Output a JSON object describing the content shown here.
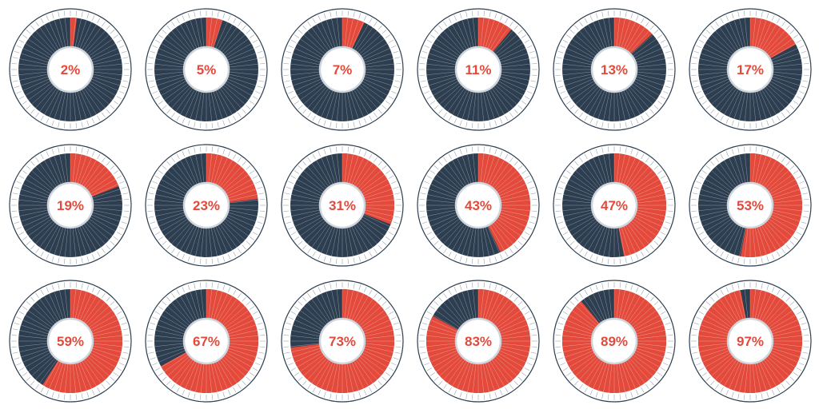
{
  "chart_data": {
    "type": "pie",
    "style": "donut-gauge-grid",
    "values": [
      2,
      5,
      7,
      11,
      13,
      17,
      19,
      23,
      31,
      43,
      47,
      53,
      59,
      67,
      73,
      83,
      89,
      97
    ],
    "labels": [
      "2%",
      "5%",
      "7%",
      "11%",
      "13%",
      "17%",
      "19%",
      "23%",
      "31%",
      "43%",
      "47%",
      "53%",
      "59%",
      "67%",
      "73%",
      "83%",
      "89%",
      "97%"
    ],
    "max": 100,
    "grid": {
      "rows": 3,
      "columns": 6
    },
    "colors": {
      "filled": "#e34a3b",
      "remaining": "#2c3e50",
      "label": "#e34a3b",
      "center": "#ffffff",
      "center_ring": "#cfd5dc",
      "outer_ring": "#2c3e50",
      "tick": "#9aa5b1",
      "separator": "#ffffff"
    }
  }
}
